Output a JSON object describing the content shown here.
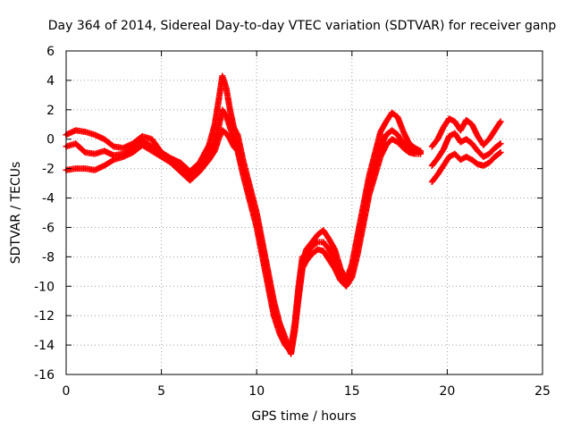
{
  "chart_data": {
    "type": "scatter",
    "title": "Day 364 of 2014, Sidereal Day-to-day VTEC variation (SDTVAR) for receiver ganp",
    "xlabel": "GPS time / hours",
    "ylabel": "SDTVAR / TECUs",
    "xlim": [
      0,
      25
    ],
    "ylim": [
      -16,
      6
    ],
    "xticks": [
      0,
      5,
      10,
      15,
      20,
      25
    ],
    "yticks": [
      -16,
      -14,
      -12,
      -10,
      -8,
      -6,
      -4,
      -2,
      0,
      2,
      4,
      6
    ],
    "grid": true,
    "legend": "none",
    "marker": "plus",
    "color": "#ff0000",
    "series": [
      {
        "x": [
          0.0,
          0.5,
          1.0,
          1.5,
          2.0,
          2.5,
          3.0,
          3.5,
          4.0,
          4.5,
          5.0,
          5.5,
          6.0,
          6.5,
          7.0,
          7.5,
          7.8,
          8.0,
          8.2,
          8.4,
          8.6,
          8.8,
          9.0,
          9.3,
          9.6,
          9.8,
          10.0,
          10.3,
          10.6,
          10.9,
          11.2,
          11.5,
          11.8,
          12.0,
          12.2,
          12.4,
          12.6,
          12.9,
          13.2,
          13.5,
          13.8,
          14.1,
          14.4,
          14.7,
          15.0,
          15.3,
          15.6,
          15.9,
          16.2,
          16.5,
          16.8,
          17.1,
          17.4,
          17.7,
          18.0,
          18.3,
          18.6
        ],
        "y": [
          0.3,
          0.6,
          0.5,
          0.3,
          0.0,
          -0.5,
          -0.6,
          -0.3,
          0.2,
          0.0,
          -0.9,
          -1.3,
          -1.6,
          -2.2,
          -1.6,
          -0.4,
          1.0,
          2.6,
          4.3,
          3.5,
          2.0,
          0.8,
          0.3,
          -1.5,
          -3.0,
          -4.0,
          -5.0,
          -7.0,
          -9.0,
          -11.0,
          -12.5,
          -13.5,
          -14.6,
          -13.0,
          -10.5,
          -8.5,
          -7.5,
          -7.0,
          -6.5,
          -6.2,
          -6.8,
          -7.5,
          -8.8,
          -9.6,
          -8.5,
          -6.5,
          -4.5,
          -2.5,
          -1.0,
          0.5,
          1.2,
          1.8,
          1.5,
          0.5,
          -0.3,
          -0.6,
          -0.8
        ]
      },
      {
        "x": [
          0.0,
          0.5,
          1.0,
          1.5,
          2.0,
          2.5,
          3.0,
          3.5,
          4.0,
          4.5,
          5.0,
          5.5,
          6.0,
          6.5,
          7.0,
          7.5,
          7.8,
          8.0,
          8.2,
          8.4,
          8.6,
          8.8,
          9.0,
          9.3,
          9.6,
          9.8,
          10.0,
          10.3,
          10.6,
          10.9,
          11.2,
          11.5,
          11.8,
          12.0,
          12.2,
          12.4,
          12.6,
          12.9,
          13.2,
          13.5,
          13.8,
          14.1,
          14.4,
          14.7,
          15.0,
          15.3,
          15.6,
          15.9,
          16.2,
          16.5,
          16.8,
          17.1,
          17.4,
          17.7,
          18.0,
          18.3,
          18.6
        ],
        "y": [
          -0.5,
          -0.3,
          -0.9,
          -1.0,
          -0.8,
          -1.1,
          -1.0,
          -0.6,
          -0.1,
          -0.5,
          -1.0,
          -1.5,
          -2.0,
          -2.6,
          -1.9,
          -1.0,
          -0.2,
          0.8,
          2.0,
          1.6,
          0.8,
          0.0,
          -0.4,
          -2.0,
          -3.5,
          -4.5,
          -5.5,
          -7.5,
          -9.5,
          -11.5,
          -12.8,
          -13.8,
          -14.2,
          -12.5,
          -10.0,
          -8.0,
          -7.8,
          -7.3,
          -7.0,
          -7.0,
          -7.5,
          -8.2,
          -9.3,
          -9.9,
          -9.0,
          -7.2,
          -5.2,
          -3.2,
          -1.8,
          -0.5,
          0.3,
          0.6,
          0.3,
          -0.3,
          -0.7,
          -0.9,
          -0.9
        ]
      },
      {
        "x": [
          0.0,
          0.5,
          1.0,
          1.5,
          2.0,
          2.5,
          3.0,
          3.5,
          4.0,
          4.5,
          5.0,
          5.5,
          6.0,
          6.5,
          7.0,
          7.5,
          7.8,
          8.0,
          8.2,
          8.4,
          8.6,
          8.8,
          9.0,
          9.3,
          9.6,
          9.8,
          10.0,
          10.3,
          10.6,
          10.9,
          11.2,
          11.5,
          11.8,
          12.0,
          12.2,
          12.4,
          12.6,
          12.9,
          13.2,
          13.5,
          13.8,
          14.1,
          14.4,
          14.7,
          15.0,
          15.3,
          15.6,
          15.9,
          16.2,
          16.5,
          16.8,
          17.1,
          17.4,
          17.7,
          18.0,
          18.3,
          18.6
        ],
        "y": [
          -2.1,
          -2.0,
          -2.0,
          -2.1,
          -1.8,
          -1.4,
          -1.2,
          -0.9,
          -0.4,
          -0.8,
          -1.2,
          -1.6,
          -2.2,
          -2.8,
          -2.2,
          -1.4,
          -0.8,
          0.0,
          0.6,
          0.4,
          0.0,
          -0.5,
          -0.8,
          -2.5,
          -4.0,
          -5.0,
          -6.0,
          -8.0,
          -10.0,
          -12.0,
          -13.2,
          -14.0,
          -14.5,
          -13.0,
          -10.8,
          -8.8,
          -8.3,
          -7.8,
          -7.5,
          -7.6,
          -8.2,
          -8.8,
          -9.6,
          -10.0,
          -9.4,
          -7.8,
          -5.8,
          -3.8,
          -2.5,
          -1.2,
          -0.4,
          0.0,
          -0.2,
          -0.6,
          -0.9,
          -1.0,
          -1.0
        ]
      },
      {
        "x": [
          19.2,
          19.5,
          19.8,
          20.1,
          20.4,
          20.7,
          21.0,
          21.3,
          21.6,
          21.9,
          22.2,
          22.5,
          22.8
        ],
        "y": [
          -0.5,
          0.0,
          0.8,
          1.4,
          1.2,
          0.6,
          1.3,
          1.0,
          0.2,
          -0.4,
          0.0,
          0.6,
          1.2
        ]
      },
      {
        "x": [
          19.2,
          19.5,
          19.8,
          20.1,
          20.4,
          20.7,
          21.0,
          21.3,
          21.6,
          21.9,
          22.2,
          22.5,
          22.8
        ],
        "y": [
          -1.8,
          -1.3,
          -0.7,
          0.2,
          0.4,
          -0.2,
          0.0,
          -0.3,
          -0.8,
          -1.2,
          -1.0,
          -0.6,
          -0.3
        ]
      },
      {
        "x": [
          19.2,
          19.5,
          19.8,
          20.1,
          20.4,
          20.7,
          21.0,
          21.3,
          21.6,
          21.9,
          22.2,
          22.5,
          22.8
        ],
        "y": [
          -2.9,
          -2.4,
          -1.8,
          -1.2,
          -1.0,
          -1.4,
          -1.2,
          -1.4,
          -1.7,
          -1.8,
          -1.6,
          -1.2,
          -0.9
        ]
      }
    ]
  }
}
